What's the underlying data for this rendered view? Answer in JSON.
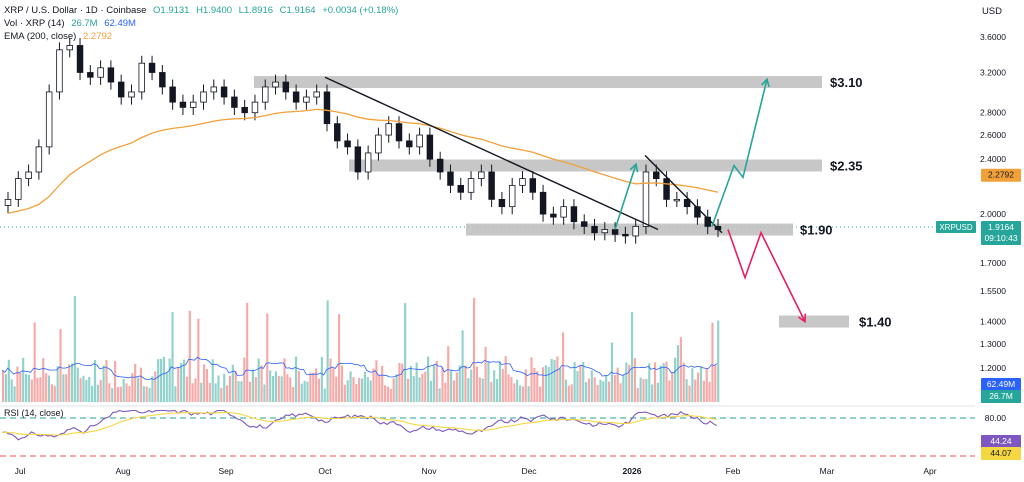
{
  "header": {
    "symbol_line": "XRP / U.S. Dollar · 1D · Coinbase",
    "open": "O1.9131",
    "high": "H1.9400",
    "low": "L1.8916",
    "close": "C1.9164",
    "change": "+0.0034 (+0.18%)",
    "vol_label": "Vol · XRP (14)",
    "vol_value": "26.7M",
    "vol_ma": "62.49M",
    "ema_label": "EMA (200, close)",
    "ema_value": "2.2792",
    "currency": "USD"
  },
  "colors": {
    "up": "#26a69a",
    "down": "#ef5350",
    "ema": "#f2a13a",
    "rsi": "#7e57c2",
    "rsi_ma": "#f5d742",
    "vol_ma": "#2962ff",
    "arrow_up": "#26a69a",
    "arrow_down": "#e91e63",
    "zone": "#bdbdbd",
    "last_price_badge": "#2962ff"
  },
  "chart_data": {
    "type": "candlestick",
    "price_axis": {
      "scale": "log",
      "ticks": [
        "3.6000",
        "3.2000",
        "2.8000",
        "2.6000",
        "2.4000",
        "2.0000",
        "1.7000",
        "1.5500",
        "1.4000",
        "1.3000",
        "1.2000"
      ]
    },
    "x_axis_labels": [
      "Jul",
      "Aug",
      "Sep",
      "Oct",
      "Nov",
      "Dec",
      "2026",
      "Feb",
      "Mar",
      "Apr"
    ],
    "last_price": {
      "symbol": "XRPUSD",
      "value": "1.9164",
      "countdown": "09:10:43"
    },
    "ema_badge": "2.2792",
    "levels": [
      {
        "label": "$3.10",
        "value": 3.1
      },
      {
        "label": "$2.35",
        "value": 2.35
      },
      {
        "label": "$1.90",
        "value": 1.9
      },
      {
        "label": "$1.40",
        "value": 1.4
      }
    ],
    "close_series": [
      2.1,
      2.25,
      2.3,
      2.5,
      3.0,
      3.45,
      3.5,
      3.2,
      3.15,
      3.25,
      3.1,
      2.95,
      3.0,
      3.3,
      3.2,
      3.05,
      2.9,
      2.85,
      2.9,
      3.0,
      3.05,
      2.95,
      2.85,
      2.8,
      2.9,
      3.05,
      3.1,
      3.0,
      2.9,
      2.95,
      3.0,
      2.7,
      2.55,
      2.5,
      2.3,
      2.45,
      2.6,
      2.7,
      2.55,
      2.5,
      2.6,
      2.4,
      2.3,
      2.2,
      2.15,
      2.25,
      2.3,
      2.1,
      2.05,
      2.2,
      2.25,
      2.15,
      2.0,
      1.98,
      2.05,
      1.95,
      1.92,
      1.88,
      1.9,
      1.87,
      1.86,
      1.92,
      2.3,
      2.25,
      2.1,
      2.1,
      2.05,
      1.98,
      1.92,
      1.9
    ],
    "volume": {
      "last": "26.7M",
      "ma": "62.49M"
    },
    "rsi": {
      "label": "RSI (14, close)",
      "value": "44.24",
      "ma": "44.07",
      "levels": [
        "80.00"
      ]
    }
  }
}
